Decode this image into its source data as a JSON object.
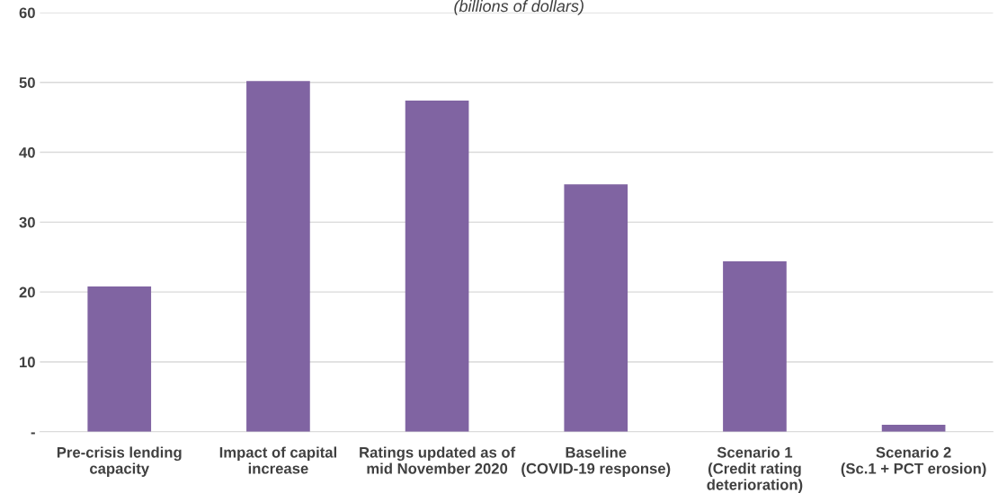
{
  "chart_data": {
    "type": "bar",
    "subtitle": "(billions of dollars)",
    "categories": [
      "Pre-crisis lending\ncapacity",
      "Impact of capital\nincrease",
      "Ratings updated as of\nmid November 2020",
      "Baseline\n(COVID-19 response)",
      "Scenario 1\n(Credit rating\ndeterioration)",
      "Scenario 2\n(Sc.1 + PCT erosion)"
    ],
    "values": [
      20.8,
      50.2,
      47.4,
      35.4,
      24.4,
      1.0
    ],
    "color": "#8064a2",
    "ylim": [
      0,
      60
    ],
    "yticks": [
      {
        "value": 0,
        "label": "-"
      },
      10,
      20,
      30,
      40,
      50,
      60
    ],
    "grid": "y"
  }
}
